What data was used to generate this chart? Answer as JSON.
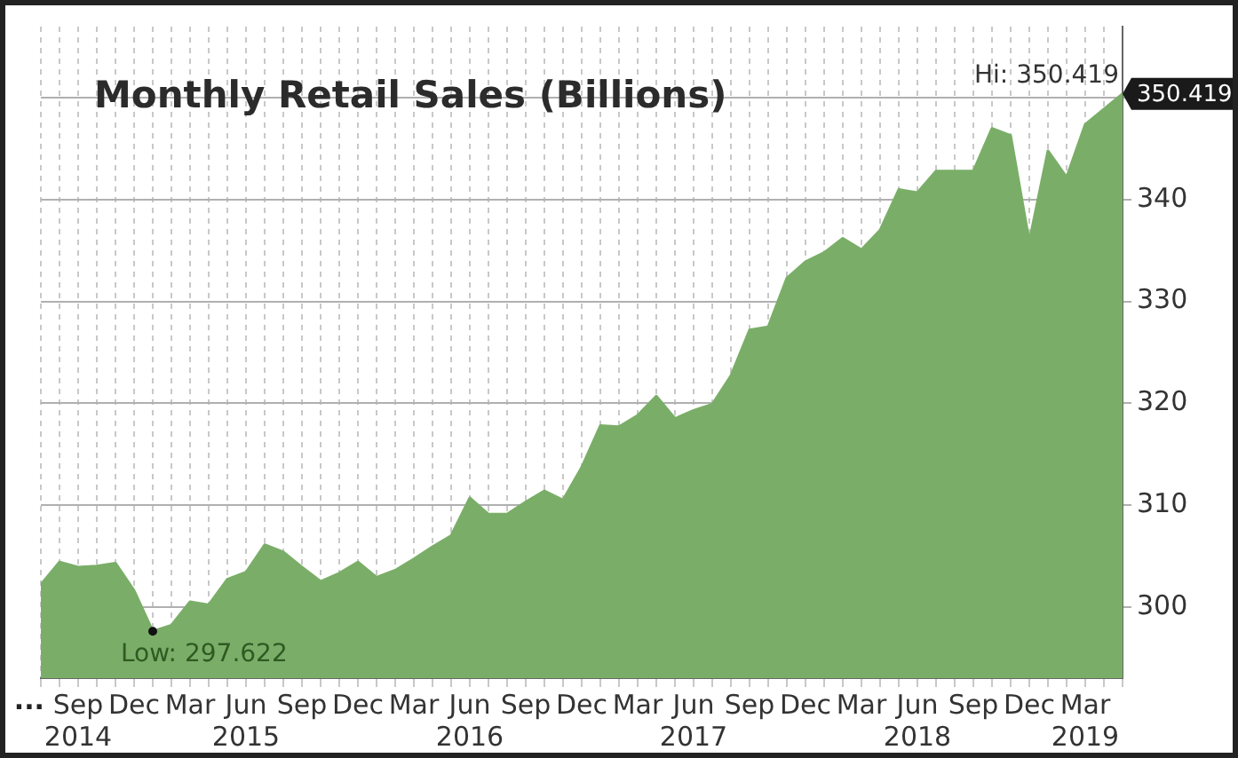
{
  "chart_data": {
    "type": "area",
    "title": "Monthly Retail Sales (Billions)",
    "x": [
      "2014-07",
      "2014-08",
      "2014-09",
      "2014-10",
      "2014-11",
      "2014-12",
      "2015-01",
      "2015-02",
      "2015-03",
      "2015-04",
      "2015-05",
      "2015-06",
      "2015-07",
      "2015-08",
      "2015-09",
      "2015-10",
      "2015-11",
      "2015-12",
      "2016-01",
      "2016-02",
      "2016-03",
      "2016-04",
      "2016-05",
      "2016-06",
      "2016-07",
      "2016-08",
      "2016-09",
      "2016-10",
      "2016-11",
      "2016-12",
      "2017-01",
      "2017-02",
      "2017-03",
      "2017-04",
      "2017-05",
      "2017-06",
      "2017-07",
      "2017-08",
      "2017-09",
      "2017-10",
      "2017-11",
      "2017-12",
      "2018-01",
      "2018-02",
      "2018-03",
      "2018-04",
      "2018-05",
      "2018-06",
      "2018-07",
      "2018-08",
      "2018-09",
      "2018-10",
      "2018-11",
      "2018-12",
      "2019-01",
      "2019-02",
      "2019-03",
      "2019-04",
      "2019-05"
    ],
    "series": [
      {
        "color": "#7aae68",
        "values": [
          302.2,
          304.4,
          303.9,
          304.0,
          304.3,
          301.6,
          297.6,
          298.2,
          300.5,
          300.2,
          302.7,
          303.4,
          306.1,
          305.4,
          303.9,
          302.5,
          303.3,
          304.4,
          302.9,
          303.6,
          304.7,
          305.9,
          307.0,
          310.7,
          309.1,
          309.1,
          310.3,
          311.4,
          310.5,
          313.7,
          317.8,
          317.7,
          318.8,
          320.7,
          318.5,
          319.3,
          319.9,
          322.7,
          327.2,
          327.5,
          332.3,
          333.9,
          334.8,
          336.2,
          335.1,
          337.0,
          341.0,
          340.7,
          342.8,
          342.8,
          342.8,
          347.0,
          346.3,
          335.9,
          344.8,
          342.2,
          347.4,
          348.9,
          350.4
        ]
      }
    ],
    "xlim": [
      "2014-07",
      "2019-05"
    ],
    "xticks": [
      {
        "value": "2014-07",
        "label": null
      },
      {
        "value": "2014-08",
        "label": null
      },
      {
        "value": "2014-09",
        "label": "Sep\n2014"
      },
      {
        "value": "2014-10",
        "label": null
      },
      {
        "value": "2014-11",
        "label": null
      },
      {
        "value": "2014-12",
        "label": "Dec"
      },
      {
        "value": "2015-01",
        "label": null
      },
      {
        "value": "2015-02",
        "label": null
      },
      {
        "value": "2015-03",
        "label": "Mar"
      },
      {
        "value": "2015-04",
        "label": null
      },
      {
        "value": "2015-05",
        "label": null
      },
      {
        "value": "2015-06",
        "label": "Jun\n2015"
      },
      {
        "value": "2015-07",
        "label": null
      },
      {
        "value": "2015-08",
        "label": null
      },
      {
        "value": "2015-09",
        "label": "Sep"
      },
      {
        "value": "2015-10",
        "label": null
      },
      {
        "value": "2015-11",
        "label": null
      },
      {
        "value": "2015-12",
        "label": "Dec"
      },
      {
        "value": "2016-01",
        "label": null
      },
      {
        "value": "2016-02",
        "label": null
      },
      {
        "value": "2016-03",
        "label": "Mar"
      },
      {
        "value": "2016-04",
        "label": null
      },
      {
        "value": "2016-05",
        "label": null
      },
      {
        "value": "2016-06",
        "label": "Jun\n2016"
      },
      {
        "value": "2016-07",
        "label": null
      },
      {
        "value": "2016-08",
        "label": null
      },
      {
        "value": "2016-09",
        "label": "Sep"
      },
      {
        "value": "2016-10",
        "label": null
      },
      {
        "value": "2016-11",
        "label": null
      },
      {
        "value": "2016-12",
        "label": "Dec"
      },
      {
        "value": "2017-01",
        "label": null
      },
      {
        "value": "2017-02",
        "label": null
      },
      {
        "value": "2017-03",
        "label": "Mar"
      },
      {
        "value": "2017-04",
        "label": null
      },
      {
        "value": "2017-05",
        "label": null
      },
      {
        "value": "2017-06",
        "label": "Jun\n2017"
      },
      {
        "value": "2017-07",
        "label": null
      },
      {
        "value": "2017-08",
        "label": null
      },
      {
        "value": "2017-09",
        "label": "Sep"
      },
      {
        "value": "2017-10",
        "label": null
      },
      {
        "value": "2017-11",
        "label": null
      },
      {
        "value": "2017-12",
        "label": "Dec"
      },
      {
        "value": "2018-01",
        "label": null
      },
      {
        "value": "2018-02",
        "label": null
      },
      {
        "value": "2018-03",
        "label": "Mar"
      },
      {
        "value": "2018-04",
        "label": null
      },
      {
        "value": "2018-05",
        "label": null
      },
      {
        "value": "2018-06",
        "label": "Jun\n2018"
      },
      {
        "value": "2018-07",
        "label": null
      },
      {
        "value": "2018-08",
        "label": null
      },
      {
        "value": "2018-09",
        "label": "Sep"
      },
      {
        "value": "2018-10",
        "label": null
      },
      {
        "value": "2018-11",
        "label": null
      },
      {
        "value": "2018-12",
        "label": "Dec"
      },
      {
        "value": "2019-01",
        "label": null
      },
      {
        "value": "2019-02",
        "label": null
      },
      {
        "value": "2019-03",
        "label": "Mar\n2019"
      },
      {
        "value": "2019-04",
        "label": null
      },
      {
        "value": "2019-05",
        "label": null
      }
    ],
    "ylim": [
      293,
      357
    ],
    "yticks": [
      300,
      310,
      320,
      330,
      340,
      {
        "value": 350,
        "label": null
      }
    ],
    "grid": true,
    "annotations": [
      {
        "text": "Hi: 350.419",
        "x": "2019-05",
        "y": 350.4
      },
      "350.419",
      {
        "text": "Low: 297.622",
        "x": "2015-01",
        "y": 297.6
      },
      "..."
    ]
  }
}
